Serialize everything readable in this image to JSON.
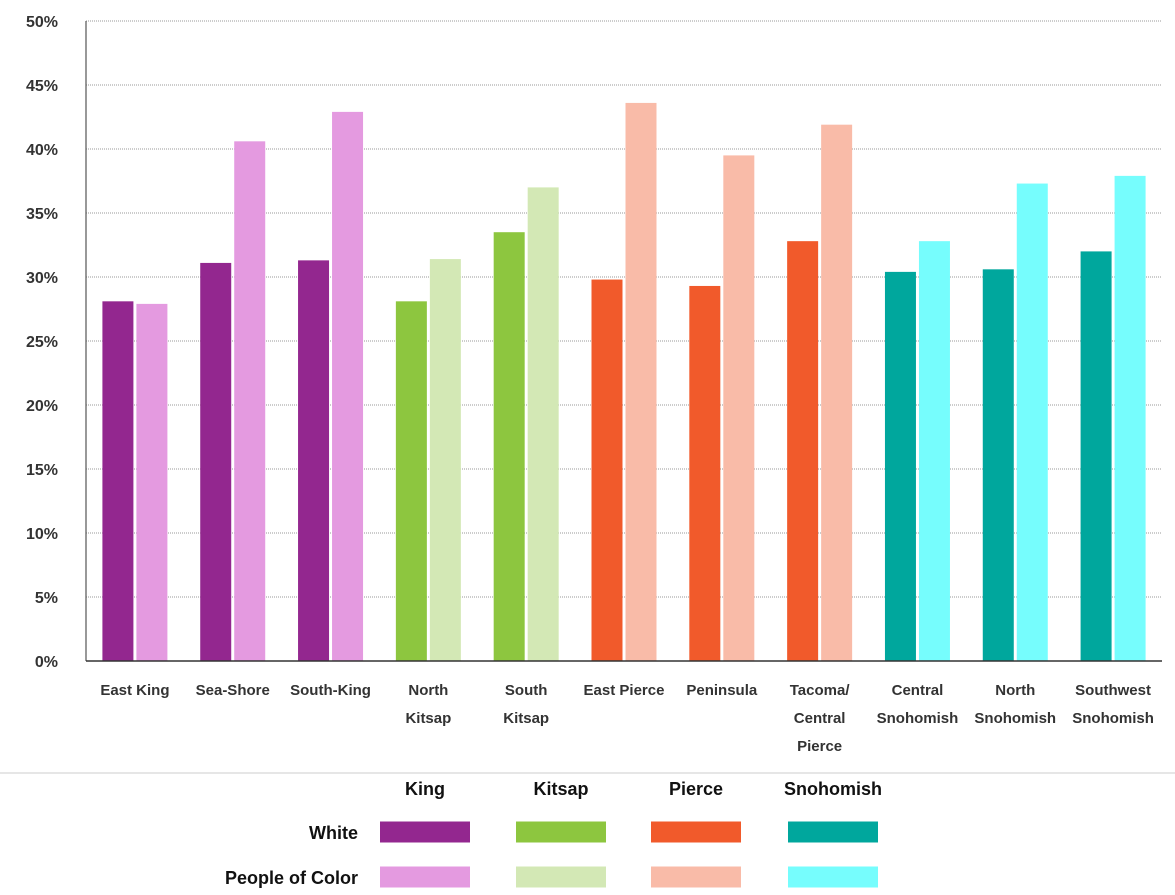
{
  "chart_data": {
    "type": "bar",
    "categories": [
      [
        "East King"
      ],
      [
        "Sea-Shore"
      ],
      [
        "South-King"
      ],
      [
        "North",
        "Kitsap"
      ],
      [
        "South",
        "Kitsap"
      ],
      [
        "East Pierce"
      ],
      [
        "Peninsula"
      ],
      [
        "Tacoma/",
        "Central",
        "Pierce"
      ],
      [
        "Central",
        "Snohomish"
      ],
      [
        "North",
        "Snohomish"
      ],
      [
        "Southwest",
        "Snohomish"
      ]
    ],
    "category_group": [
      "King",
      "King",
      "King",
      "Kitsap",
      "Kitsap",
      "Pierce",
      "Pierce",
      "Pierce",
      "Snohomish",
      "Snohomish",
      "Snohomish"
    ],
    "series": [
      {
        "name": "White",
        "values": [
          28.1,
          31.1,
          31.3,
          28.1,
          33.5,
          29.8,
          29.3,
          32.8,
          30.4,
          30.6,
          32.0
        ]
      },
      {
        "name": "People of Color",
        "values": [
          27.9,
          40.6,
          42.9,
          31.4,
          37.0,
          43.6,
          39.5,
          41.9,
          32.8,
          37.3,
          37.9
        ]
      }
    ],
    "ylim": [
      0,
      50
    ],
    "yticks": [
      0,
      5,
      10,
      15,
      20,
      25,
      30,
      35,
      40,
      45,
      50
    ],
    "ytick_labels": [
      "0%",
      "5%",
      "10%",
      "15%",
      "20%",
      "25%",
      "30%",
      "35%",
      "40%",
      "45%",
      "50%"
    ],
    "grid": true,
    "legend": {
      "placement": "bottom",
      "groups": [
        "King",
        "Kitsap",
        "Pierce",
        "Snohomish"
      ],
      "rows": [
        "White",
        "People of Color"
      ]
    },
    "colors": {
      "King": {
        "White": "#93278f",
        "People of Color": "#e49ae0"
      },
      "Kitsap": {
        "White": "#8dc63f",
        "People of Color": "#d3e8b5"
      },
      "Pierce": {
        "White": "#f15a2b",
        "People of Color": "#f9bba8"
      },
      "Snohomish": {
        "White": "#00a79d",
        "People of Color": "#76fdfd"
      }
    }
  }
}
